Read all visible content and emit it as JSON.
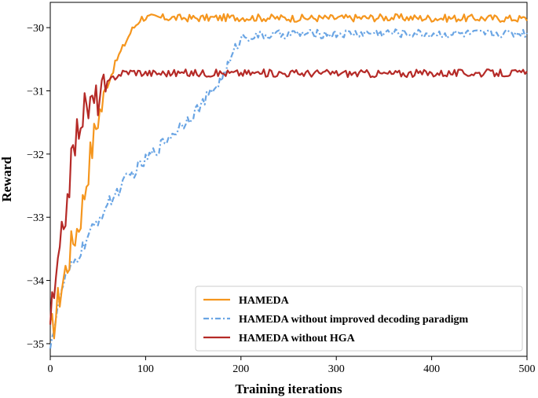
{
  "chart_data": {
    "type": "line",
    "title": "",
    "xlabel": "Training iterations",
    "ylabel": "Reward",
    "xlim": [
      0,
      500
    ],
    "ylim": [
      -35.2,
      -29.6
    ],
    "xticks": [
      0,
      100,
      200,
      300,
      400,
      500
    ],
    "yticks": [
      -35,
      -34,
      -33,
      -32,
      -31,
      -30
    ],
    "ytick_labels": [
      "−35",
      "−34",
      "−33",
      "−32",
      "−31",
      "−30"
    ],
    "legend_position": "lower-right",
    "grid": false,
    "series": [
      {
        "name": "HAMEDA",
        "color": "#f5961e",
        "style": "solid",
        "x": [
          0,
          5,
          10,
          15,
          20,
          25,
          30,
          35,
          40,
          45,
          50,
          55,
          60,
          65,
          70,
          75,
          80,
          85,
          90,
          95,
          100,
          150,
          200,
          250,
          300,
          350,
          400,
          450,
          500
        ],
        "y": [
          -34.9,
          -34.6,
          -34.2,
          -33.9,
          -33.6,
          -33.3,
          -33.1,
          -32.7,
          -32.2,
          -31.8,
          -31.4,
          -31.2,
          -30.9,
          -30.7,
          -30.5,
          -30.35,
          -30.2,
          -30.05,
          -29.95,
          -29.85,
          -29.84,
          -29.85,
          -29.84,
          -29.85,
          -29.85,
          -29.84,
          -29.85,
          -29.85,
          -29.86
        ]
      },
      {
        "name": "HAMEDA without improved decoding paradigm",
        "color": "#6aa5e4",
        "style": "dashdot",
        "x": [
          0,
          5,
          10,
          15,
          20,
          30,
          40,
          50,
          60,
          70,
          80,
          90,
          100,
          110,
          120,
          130,
          140,
          150,
          160,
          170,
          180,
          190,
          195,
          200,
          250,
          300,
          350,
          400,
          450,
          500
        ],
        "y": [
          -35.0,
          -34.7,
          -34.3,
          -34.0,
          -33.85,
          -33.6,
          -33.3,
          -33.05,
          -32.8,
          -32.6,
          -32.4,
          -32.25,
          -32.1,
          -31.95,
          -31.8,
          -31.65,
          -31.5,
          -31.35,
          -31.2,
          -31.0,
          -30.8,
          -30.5,
          -30.3,
          -30.15,
          -30.1,
          -30.1,
          -30.08,
          -30.1,
          -30.1,
          -30.08
        ]
      },
      {
        "name": "HAMEDA without HGA",
        "color": "#b52a27",
        "style": "solid",
        "x": [
          0,
          5,
          10,
          15,
          20,
          25,
          30,
          35,
          40,
          45,
          50,
          55,
          60,
          65,
          70,
          75,
          80,
          90,
          100,
          150,
          200,
          250,
          300,
          350,
          400,
          450,
          500
        ],
        "y": [
          -34.6,
          -34.2,
          -33.6,
          -33.0,
          -32.4,
          -31.9,
          -31.5,
          -31.3,
          -31.25,
          -31.2,
          -31.1,
          -31.0,
          -30.9,
          -30.8,
          -30.75,
          -30.72,
          -30.7,
          -30.7,
          -30.72,
          -30.72,
          -30.72,
          -30.72,
          -30.72,
          -30.73,
          -30.72,
          -30.72,
          -30.72
        ]
      }
    ]
  }
}
